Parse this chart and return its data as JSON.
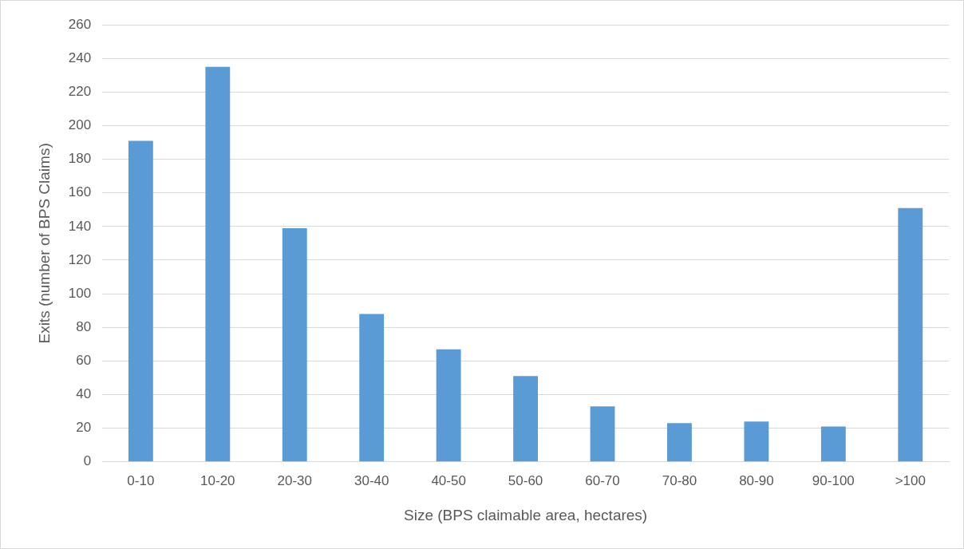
{
  "chart_data": {
    "type": "bar",
    "xlabel": "Size (BPS claimable area, hectares)",
    "ylabel": "Exits (number of BPS Claims)",
    "categories": [
      "0-10",
      "10-20",
      "20-30",
      "30-40",
      "40-50",
      "50-60",
      "60-70",
      "70-80",
      "80-90",
      "90-100",
      ">100"
    ],
    "values": [
      191,
      235,
      139,
      88,
      67,
      51,
      33,
      23,
      24,
      21,
      151
    ],
    "color": "#5b9bd5",
    "ylim": [
      0,
      260
    ],
    "yticks": [
      0,
      20,
      40,
      60,
      80,
      100,
      120,
      140,
      160,
      180,
      200,
      220,
      240,
      260
    ],
    "grid": "y",
    "legend": false
  }
}
